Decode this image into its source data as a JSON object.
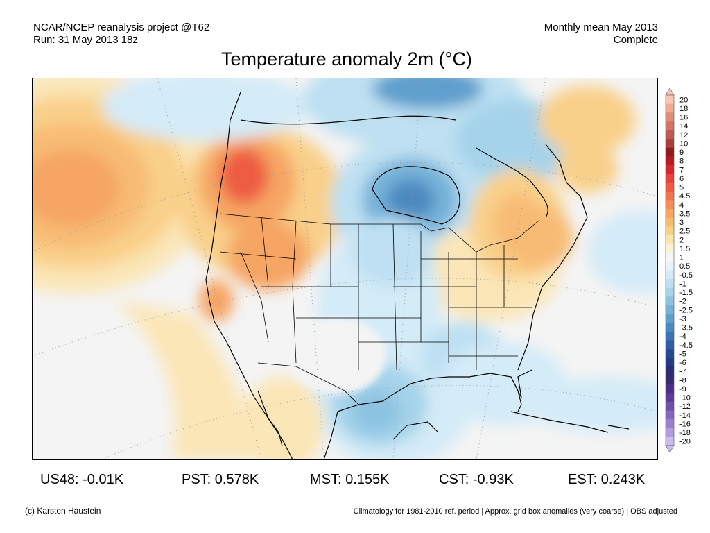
{
  "header": {
    "left_line1": "NCAR/NCEP reanalysis project @T62",
    "left_line2": "Run: 31 May 2013 18z",
    "right_line1": "Monthly mean May 2013",
    "right_line2": "Complete"
  },
  "title": "Temperature anomaly 2m (°C)",
  "legend": {
    "labels": [
      "20",
      "18",
      "16",
      "14",
      "12",
      "10",
      "9",
      "8",
      "7",
      "6",
      "5",
      "4.5",
      "4",
      "3.5",
      "3",
      "2.5",
      "2",
      "1.5",
      "1",
      "0.5",
      "-0.5",
      "-1",
      "-1.5",
      "-2",
      "-2.5",
      "-3",
      "-3.5",
      "-4",
      "-4.5",
      "-5",
      "-6",
      "-7",
      "-8",
      "-9",
      "-10",
      "-12",
      "-14",
      "-16",
      "-18",
      "-20"
    ],
    "colors": [
      "#f8c6b2",
      "#f0aa96",
      "#e08e7c",
      "#cf7466",
      "#bd5a52",
      "#a8403f",
      "#8f1b1e",
      "#b31d22",
      "#d8272b",
      "#e8433a",
      "#ee5c43",
      "#f1764f",
      "#f38e5a",
      "#f6a564",
      "#f8bb74",
      "#f9d08a",
      "#fae5aa",
      "#fbf3d6",
      "#f6f6f6",
      "#e8f3fb",
      "#d4ebf8",
      "#bee0f2",
      "#a5d3ea",
      "#8cc3e1",
      "#76b2d8",
      "#5f9fcd",
      "#4b8ac0",
      "#3a74b2",
      "#2d5ea3",
      "#264a92",
      "#253a81",
      "#2a2c72",
      "#382a72",
      "#4b2f86",
      "#5d3b9a",
      "#7050ae",
      "#8467c0",
      "#9a80cf",
      "#b29cdd",
      "#cdbceb"
    ]
  },
  "stats": [
    {
      "label": "US48: -0.01K"
    },
    {
      "label": "PST: 0.578K"
    },
    {
      "label": "MST: 0.155K"
    },
    {
      "label": "CST: -0.93K"
    },
    {
      "label": "EST: 0.243K"
    }
  ],
  "footer": {
    "left": "(c) Karsten Haustein",
    "right": "Climatology for 1981-2010 ref. period | Approx. grid box anomalies (very coarse) | OBS adjusted"
  }
}
